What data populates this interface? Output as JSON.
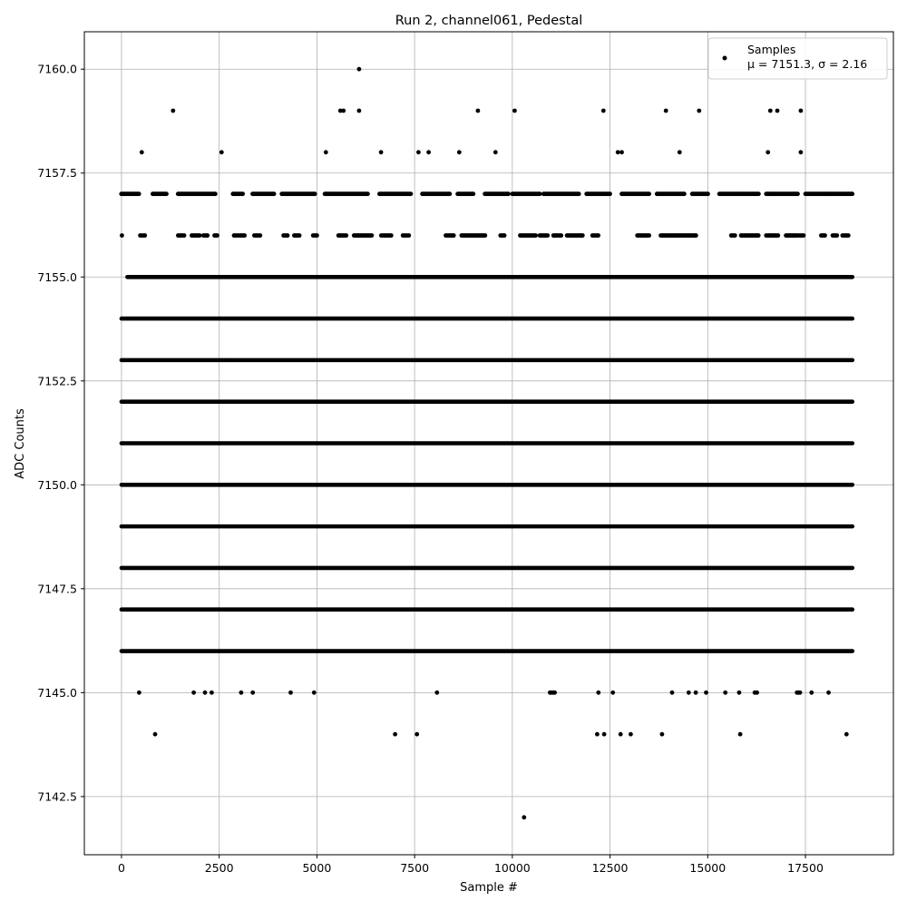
{
  "chart_data": {
    "type": "scatter",
    "title": "Run 2, channel061, Pedestal",
    "xlabel": "Sample #",
    "ylabel": "ADC Counts",
    "xlim": [
      -950,
      19750
    ],
    "ylim": [
      7141.1,
      7160.9
    ],
    "x_ticks": [
      0,
      2500,
      5000,
      7500,
      10000,
      12500,
      15000,
      17500
    ],
    "x_tick_labels": [
      "0",
      "2500",
      "5000",
      "7500",
      "10000",
      "12500",
      "15000",
      "17500"
    ],
    "y_ticks": [
      7142.5,
      7145.0,
      7147.5,
      7150.0,
      7152.5,
      7155.0,
      7157.5,
      7160.0
    ],
    "y_tick_labels": [
      "7142.5",
      "7145.0",
      "7147.5",
      "7150.0",
      "7152.5",
      "7155.0",
      "7157.5",
      "7160.0"
    ],
    "grid": true,
    "legend": {
      "placement": "top-right",
      "entries": [
        {
          "label": "Samples",
          "stat_mu": "μ = 7151.3",
          "stat_sigma": "σ = 2.16"
        }
      ]
    },
    "series": [
      {
        "name": "Samples",
        "color": "#000000",
        "marker": "circle",
        "n_samples": 18700,
        "bands": [
          {
            "y": 7156,
            "x_ranges": [
              [
                0,
                20
              ],
              [
                480,
                600
              ],
              [
                1450,
                1600
              ],
              [
                1800,
                2000
              ],
              [
                2100,
                2200
              ],
              [
                2380,
                2450
              ],
              [
                2880,
                3000
              ],
              [
                3050,
                3150
              ],
              [
                3400,
                3550
              ],
              [
                4150,
                4250
              ],
              [
                4420,
                4550
              ],
              [
                4900,
                5000
              ],
              [
                5550,
                5750
              ],
              [
                5950,
                6400
              ],
              [
                6650,
                6900
              ],
              [
                7200,
                7350
              ],
              [
                8300,
                8500
              ],
              [
                8700,
                9300
              ],
              [
                9700,
                9800
              ],
              [
                10200,
                10600
              ],
              [
                10700,
                10900
              ],
              [
                11050,
                11250
              ],
              [
                11400,
                11800
              ],
              [
                12050,
                12200
              ],
              [
                13200,
                13500
              ],
              [
                13800,
                14700
              ],
              [
                15600,
                15700
              ],
              [
                15850,
                16300
              ],
              [
                16500,
                16800
              ],
              [
                17000,
                17300
              ],
              [
                17350,
                17450
              ],
              [
                17900,
                18000
              ],
              [
                18200,
                18300
              ],
              [
                18450,
                18600
              ]
            ]
          },
          {
            "y": 7157,
            "x_ranges": [
              [
                0,
                450
              ],
              [
                800,
                1150
              ],
              [
                1450,
                2400
              ],
              [
                2850,
                3100
              ],
              [
                3350,
                3900
              ],
              [
                4100,
                4950
              ],
              [
                5200,
                6300
              ],
              [
                6600,
                7400
              ],
              [
                7700,
                8400
              ],
              [
                8600,
                9000
              ],
              [
                9300,
                9900
              ],
              [
                10000,
                10700
              ],
              [
                10800,
                11700
              ],
              [
                11900,
                12500
              ],
              [
                12800,
                13500
              ],
              [
                13700,
                14400
              ],
              [
                14600,
                15000
              ],
              [
                15300,
                16300
              ],
              [
                16500,
                17300
              ],
              [
                17500,
                18700
              ]
            ]
          },
          {
            "y": 7145,
            "x_ranges": [
              [
                440,
                460
              ],
              [
                1840,
                1860
              ],
              [
                2130,
                2150
              ],
              [
                2300,
                2320
              ],
              [
                3050,
                3070
              ],
              [
                3350,
                3370
              ],
              [
                4320,
                4340
              ],
              [
                4920,
                4940
              ],
              [
                8060,
                8080
              ],
              [
                10960,
                11080
              ],
              [
                12180,
                12220
              ],
              [
                12560,
                12580
              ],
              [
                14080,
                14100
              ],
              [
                14500,
                14520
              ],
              [
                14680,
                14700
              ],
              [
                14950,
                14970
              ],
              [
                15440,
                15460
              ],
              [
                15780,
                15820
              ],
              [
                16200,
                16260
              ],
              [
                17280,
                17360
              ],
              [
                17640,
                17680
              ],
              [
                18080,
                18100
              ]
            ]
          }
        ],
        "dense_bands": [
          {
            "y": 7155,
            "x_range": [
              150,
              18700
            ]
          },
          {
            "y": 7154,
            "x_range": [
              0,
              18700
            ]
          },
          {
            "y": 7153,
            "x_range": [
              0,
              18700
            ]
          },
          {
            "y": 7152,
            "x_range": [
              0,
              18700
            ]
          },
          {
            "y": 7151,
            "x_range": [
              0,
              18700
            ]
          },
          {
            "y": 7150,
            "x_range": [
              0,
              18700
            ]
          },
          {
            "y": 7149,
            "x_range": [
              0,
              18700
            ]
          },
          {
            "y": 7148,
            "x_range": [
              0,
              18700
            ]
          },
          {
            "y": 7147,
            "x_range": [
              0,
              18700
            ]
          },
          {
            "y": 7146,
            "x_range": [
              0,
              18700
            ]
          }
        ],
        "points": [
          [
            6080,
            7160
          ],
          [
            1320,
            7159
          ],
          [
            5600,
            7159
          ],
          [
            5680,
            7159
          ],
          [
            6080,
            7159
          ],
          [
            9120,
            7159
          ],
          [
            10060,
            7159
          ],
          [
            12330,
            7159
          ],
          [
            13930,
            7159
          ],
          [
            14780,
            7159
          ],
          [
            16600,
            7159
          ],
          [
            16780,
            7159
          ],
          [
            17380,
            7159
          ],
          [
            520,
            7158
          ],
          [
            2560,
            7158
          ],
          [
            5230,
            7158
          ],
          [
            6640,
            7158
          ],
          [
            7600,
            7158
          ],
          [
            7860,
            7158
          ],
          [
            8640,
            7158
          ],
          [
            9570,
            7158
          ],
          [
            12700,
            7158
          ],
          [
            12800,
            7158
          ],
          [
            14280,
            7158
          ],
          [
            16540,
            7158
          ],
          [
            17380,
            7158
          ],
          [
            860,
            7144
          ],
          [
            7000,
            7144
          ],
          [
            7560,
            7144
          ],
          [
            12170,
            7144
          ],
          [
            12350,
            7144
          ],
          [
            12770,
            7144
          ],
          [
            13030,
            7144
          ],
          [
            13830,
            7144
          ],
          [
            15830,
            7144
          ],
          [
            18550,
            7144
          ],
          [
            10300,
            7142
          ]
        ]
      }
    ]
  }
}
